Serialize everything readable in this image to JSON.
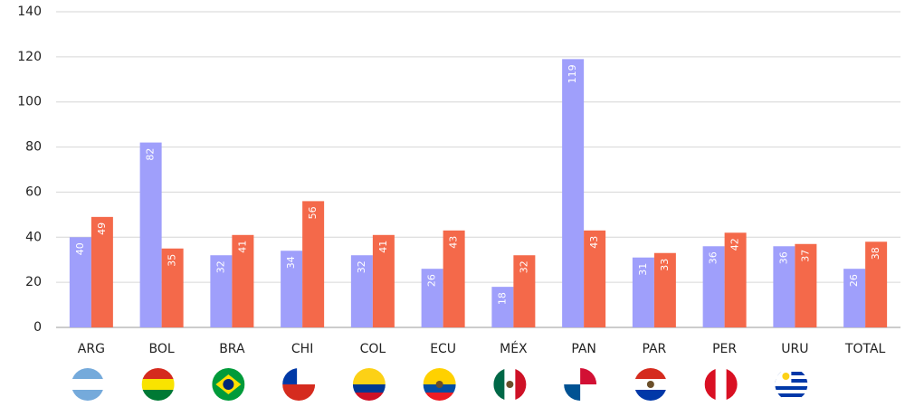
{
  "chart_data": {
    "type": "bar",
    "categories": [
      "ARG",
      "BOL",
      "BRA",
      "CHI",
      "COL",
      "ECU",
      "MÉX",
      "PAN",
      "PAR",
      "PER",
      "URU",
      "TOTAL"
    ],
    "series": [
      {
        "color": "#9f9ffb",
        "values": [
          40,
          82,
          32,
          34,
          32,
          26,
          18,
          119,
          31,
          36,
          36,
          26
        ]
      },
      {
        "color": "#f4694a",
        "values": [
          49,
          35,
          41,
          56,
          41,
          43,
          32,
          43,
          33,
          42,
          37,
          38
        ]
      }
    ],
    "ylim": [
      0,
      140
    ],
    "yticks": [
      0,
      20,
      40,
      60,
      80,
      100,
      120,
      140
    ],
    "grid": true
  }
}
